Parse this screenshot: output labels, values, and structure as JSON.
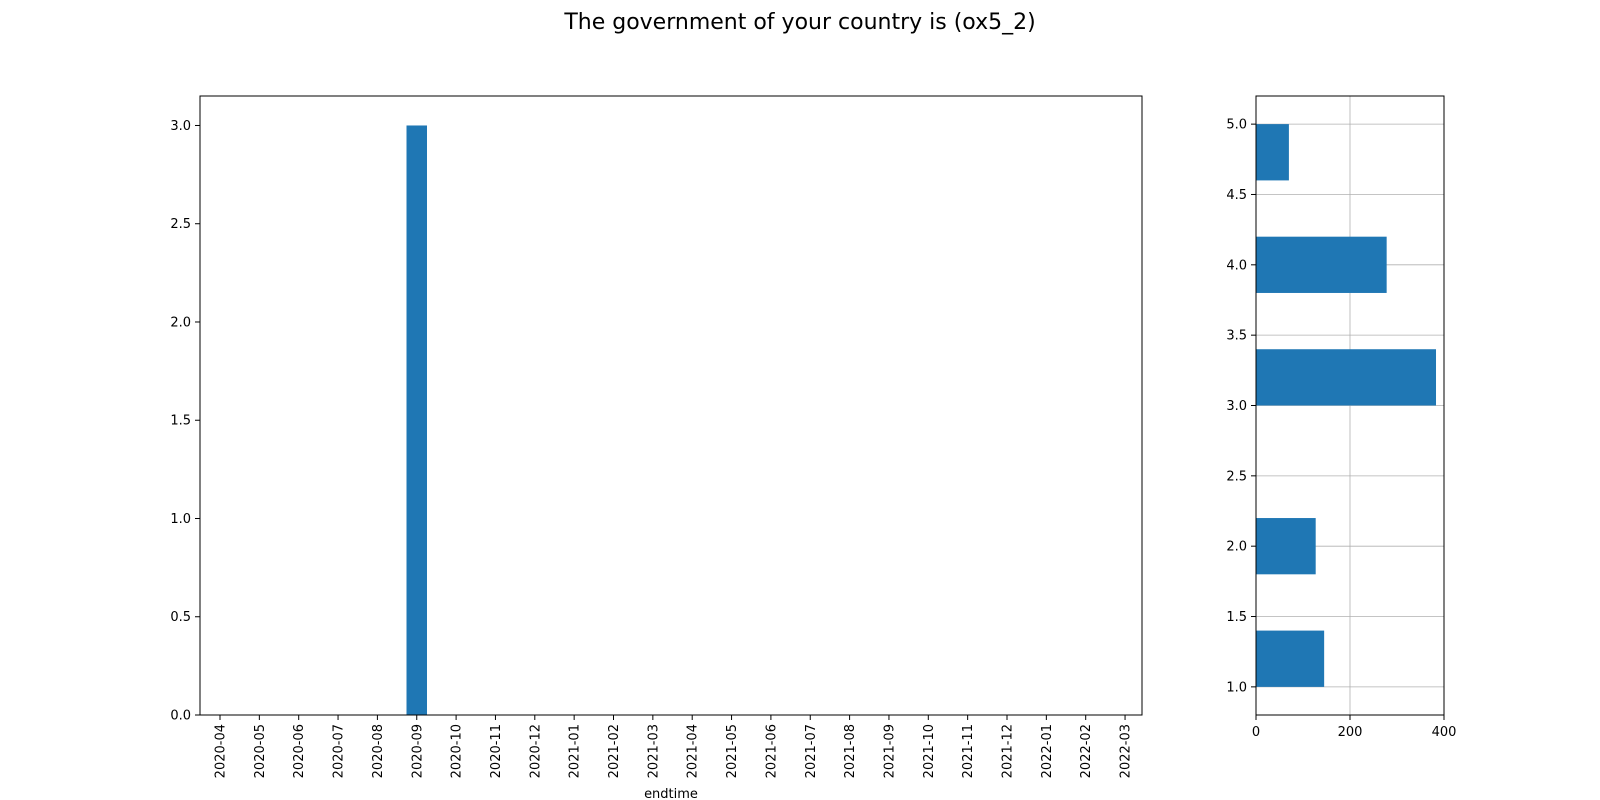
{
  "figure_title": "The government of your country is (ox5_2)",
  "bar_color": "#1f77b4",
  "chart_data": [
    {
      "type": "bar",
      "xlabel": "endtime",
      "ylabel": "",
      "ylim": [
        0,
        3.15
      ],
      "yticks": [
        "0.0",
        "0.5",
        "1.0",
        "1.5",
        "2.0",
        "2.5",
        "3.0"
      ],
      "grid": false,
      "categories": [
        "2020-04",
        "2020-05",
        "2020-06",
        "2020-07",
        "2020-08",
        "2020-09",
        "2020-10",
        "2020-11",
        "2020-12",
        "2021-01",
        "2021-02",
        "2021-03",
        "2021-04",
        "2021-05",
        "2021-06",
        "2021-07",
        "2021-08",
        "2021-09",
        "2021-10",
        "2021-11",
        "2021-12",
        "2022-01",
        "2022-02",
        "2022-03"
      ],
      "values": [
        0,
        0,
        0,
        0,
        0,
        3,
        0,
        0,
        0,
        0,
        0,
        0,
        0,
        0,
        0,
        0,
        0,
        0,
        0,
        0,
        0,
        0,
        0,
        0
      ]
    },
    {
      "type": "bar",
      "orientation": "horizontal",
      "xlabel": "",
      "ylabel": "",
      "xlim": [
        0,
        400
      ],
      "ylim": [
        0.8,
        5.2
      ],
      "xticks": [
        "0",
        "200",
        "400"
      ],
      "yticks": [
        "1.0",
        "1.5",
        "2.0",
        "2.5",
        "3.0",
        "3.5",
        "4.0",
        "4.5",
        "5.0"
      ],
      "grid": true,
      "bins": [
        {
          "from": 1.0,
          "to": 1.4,
          "count": 145
        },
        {
          "from": 1.8,
          "to": 2.2,
          "count": 127
        },
        {
          "from": 3.0,
          "to": 3.4,
          "count": 383
        },
        {
          "from": 3.8,
          "to": 4.2,
          "count": 278
        },
        {
          "from": 4.6,
          "to": 5.0,
          "count": 70
        }
      ]
    }
  ]
}
